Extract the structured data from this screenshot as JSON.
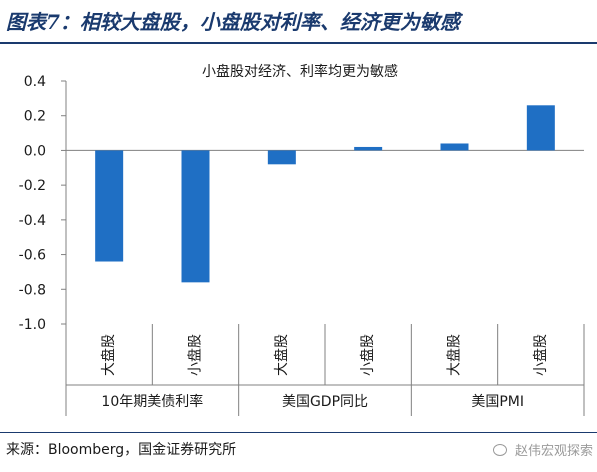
{
  "figure_title": "图表7：相较大盘股，小盘股对利率、经济更为敏感",
  "source_note": "来源：Bloomberg，国金证券研究所",
  "watermark": "赵伟宏观探索",
  "colors": {
    "bar": "#1f6fc4",
    "title": "#1a3a6e",
    "axis": "#808080"
  },
  "chart_data": {
    "type": "bar",
    "title": "小盘股对经济、利率均更为敏感",
    "ylim": [
      -1.0,
      0.4
    ],
    "yticks": [
      0.4,
      0.2,
      0.0,
      -0.2,
      -0.4,
      -0.6,
      -0.8,
      -1.0
    ],
    "ytick_labels": [
      "0.4",
      "0.2",
      "0.0",
      "-0.2",
      "-0.4",
      "-0.6",
      "-0.8",
      "-1.0"
    ],
    "grid": false,
    "legend": "none",
    "groups": [
      {
        "label": "10年期美债利率",
        "categories": [
          "大盘股",
          "小盘股"
        ],
        "values": [
          -0.64,
          -0.76
        ]
      },
      {
        "label": "美国GDP同比",
        "categories": [
          "大盘股",
          "小盘股"
        ],
        "values": [
          -0.08,
          0.02
        ]
      },
      {
        "label": "美国PMI",
        "categories": [
          "大盘股",
          "小盘股"
        ],
        "values": [
          0.04,
          0.26
        ]
      }
    ]
  }
}
